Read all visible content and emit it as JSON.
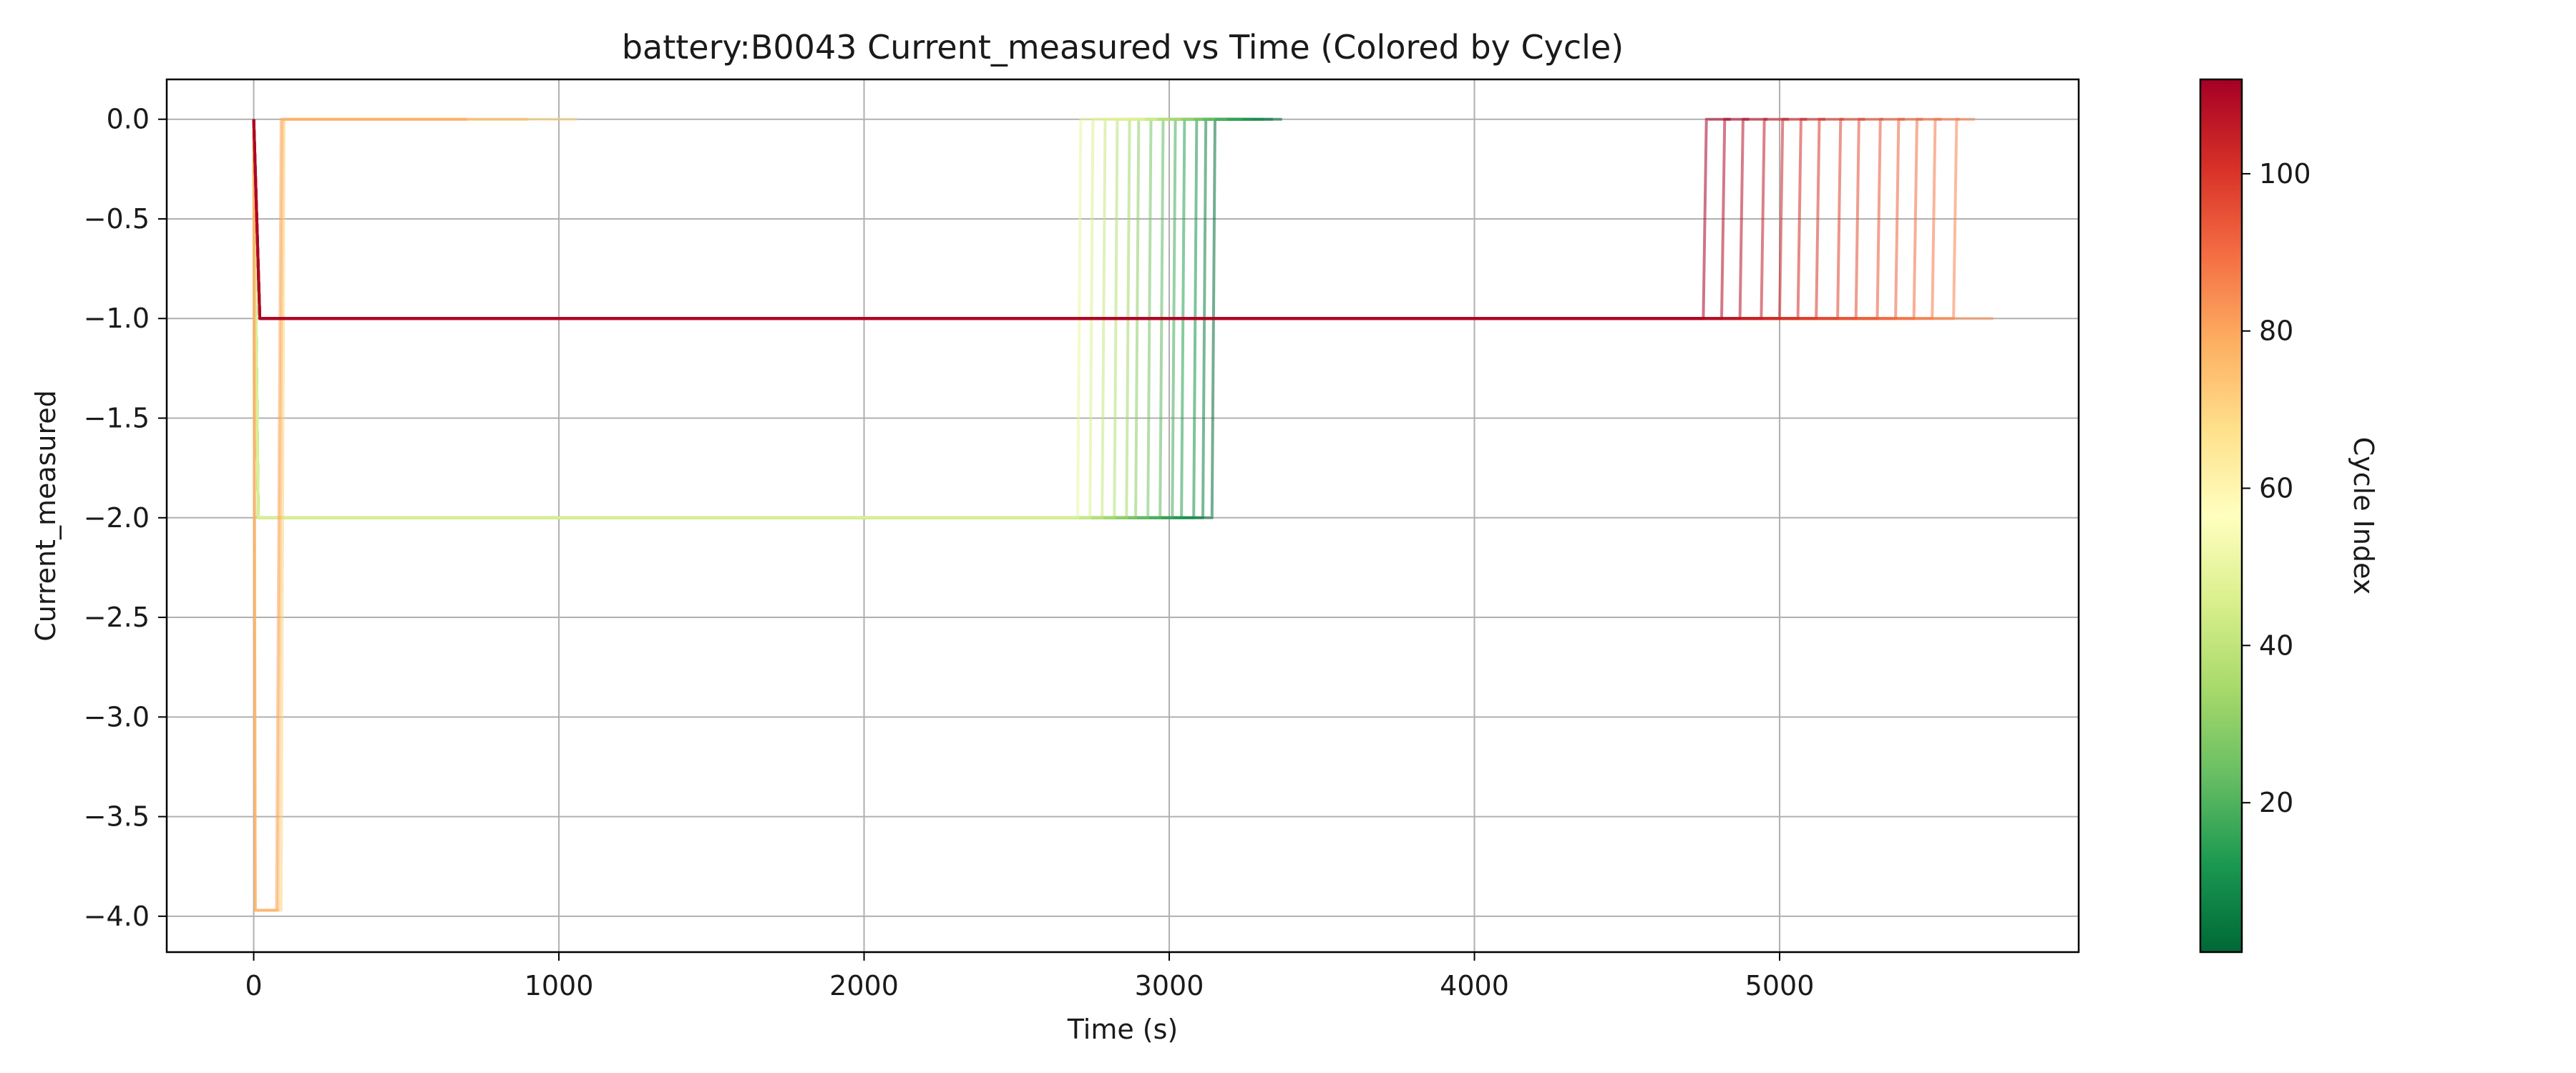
{
  "chart_data": {
    "type": "line",
    "title": "battery:B0043 Current_measured vs Time (Colored by Cycle)",
    "xlabel": "Time (s)",
    "ylabel": "Current_measured",
    "xlim": [
      -285,
      5980
    ],
    "ylim": [
      -4.18,
      0.2
    ],
    "xticks": [
      0,
      1000,
      2000,
      3000,
      4000,
      5000
    ],
    "yticks": [
      0.0,
      -0.5,
      -1.0,
      -1.5,
      -2.0,
      -2.5,
      -3.0,
      -3.5,
      -4.0
    ],
    "grid": true,
    "colorbar": {
      "label": "Cycle Index",
      "colormap": "RdYlGn_r",
      "range": [
        1,
        112
      ],
      "ticks": [
        20,
        40,
        60,
        80,
        100
      ]
    },
    "series": [
      {
        "cycle": 2,
        "points": [
          [
            0,
            0
          ],
          [
            15,
            -2
          ],
          [
            3140,
            -2
          ],
          [
            3150,
            0
          ],
          [
            3370,
            0
          ]
        ]
      },
      {
        "cycle": 6,
        "points": [
          [
            0,
            0
          ],
          [
            15,
            -2
          ],
          [
            3110,
            -2
          ],
          [
            3120,
            0
          ],
          [
            3340,
            0
          ]
        ]
      },
      {
        "cycle": 10,
        "points": [
          [
            0,
            0
          ],
          [
            15,
            -2
          ],
          [
            3080,
            -2
          ],
          [
            3090,
            0
          ],
          [
            3310,
            0
          ]
        ]
      },
      {
        "cycle": 14,
        "points": [
          [
            0,
            0
          ],
          [
            15,
            -2
          ],
          [
            3040,
            -2
          ],
          [
            3050,
            0
          ],
          [
            3270,
            0
          ]
        ]
      },
      {
        "cycle": 18,
        "points": [
          [
            0,
            0
          ],
          [
            15,
            -2
          ],
          [
            3010,
            -2
          ],
          [
            3020,
            0
          ],
          [
            3240,
            0
          ]
        ]
      },
      {
        "cycle": 22,
        "points": [
          [
            0,
            0
          ],
          [
            15,
            -2
          ],
          [
            2970,
            -2
          ],
          [
            2980,
            0
          ],
          [
            3190,
            0
          ]
        ]
      },
      {
        "cycle": 26,
        "points": [
          [
            0,
            0
          ],
          [
            15,
            -2
          ],
          [
            2930,
            -2
          ],
          [
            2940,
            0
          ],
          [
            3150,
            0
          ]
        ]
      },
      {
        "cycle": 30,
        "points": [
          [
            0,
            0
          ],
          [
            15,
            -2
          ],
          [
            2890,
            -2
          ],
          [
            2900,
            0
          ],
          [
            3110,
            0
          ]
        ]
      },
      {
        "cycle": 34,
        "points": [
          [
            0,
            0
          ],
          [
            15,
            -2
          ],
          [
            2860,
            -2
          ],
          [
            2870,
            0
          ],
          [
            3080,
            0
          ]
        ]
      },
      {
        "cycle": 38,
        "points": [
          [
            0,
            0
          ],
          [
            15,
            -2
          ],
          [
            2820,
            -2
          ],
          [
            2830,
            0
          ],
          [
            3040,
            0
          ]
        ]
      },
      {
        "cycle": 42,
        "points": [
          [
            0,
            0
          ],
          [
            15,
            -2
          ],
          [
            2780,
            -2
          ],
          [
            2790,
            0
          ],
          [
            3000,
            0
          ]
        ]
      },
      {
        "cycle": 46,
        "points": [
          [
            0,
            0
          ],
          [
            15,
            -2
          ],
          [
            2740,
            -2
          ],
          [
            2750,
            0
          ],
          [
            2960,
            0
          ]
        ]
      },
      {
        "cycle": 50,
        "points": [
          [
            0,
            0
          ],
          [
            15,
            -2
          ],
          [
            2700,
            -2
          ],
          [
            2710,
            0
          ],
          [
            2920,
            0
          ]
        ]
      },
      {
        "cycle": 70,
        "points": [
          [
            0,
            0
          ],
          [
            5,
            -3.97
          ],
          [
            90,
            -3.97
          ],
          [
            100,
            0
          ],
          [
            1060,
            0
          ]
        ]
      },
      {
        "cycle": 76,
        "points": [
          [
            0,
            0
          ],
          [
            5,
            -3.97
          ],
          [
            80,
            -3.97
          ],
          [
            95,
            0
          ],
          [
            900,
            0
          ]
        ]
      },
      {
        "cycle": 80,
        "points": [
          [
            0,
            0
          ],
          [
            5,
            -3.97
          ],
          [
            75,
            -3.97
          ],
          [
            90,
            0
          ],
          [
            700,
            0
          ]
        ]
      },
      {
        "cycle": 84,
        "points": [
          [
            0,
            0
          ],
          [
            20,
            -1
          ],
          [
            5700,
            -1
          ]
        ]
      },
      {
        "cycle": 86,
        "points": [
          [
            0,
            0
          ],
          [
            20,
            -1
          ],
          [
            5570,
            -1
          ],
          [
            5580,
            0
          ],
          [
            5640,
            0
          ]
        ]
      },
      {
        "cycle": 88,
        "points": [
          [
            0,
            0
          ],
          [
            20,
            -1
          ],
          [
            5500,
            -1
          ],
          [
            5510,
            0
          ],
          [
            5590,
            0
          ]
        ]
      },
      {
        "cycle": 90,
        "points": [
          [
            0,
            0
          ],
          [
            20,
            -1
          ],
          [
            5440,
            -1
          ],
          [
            5450,
            0
          ],
          [
            5530,
            0
          ]
        ]
      },
      {
        "cycle": 92,
        "points": [
          [
            0,
            0
          ],
          [
            20,
            -1
          ],
          [
            5380,
            -1
          ],
          [
            5390,
            0
          ],
          [
            5470,
            0
          ]
        ]
      },
      {
        "cycle": 94,
        "points": [
          [
            0,
            0
          ],
          [
            20,
            -1
          ],
          [
            5320,
            -1
          ],
          [
            5330,
            0
          ],
          [
            5410,
            0
          ]
        ]
      },
      {
        "cycle": 96,
        "points": [
          [
            0,
            0
          ],
          [
            20,
            -1
          ],
          [
            5250,
            -1
          ],
          [
            5260,
            0
          ],
          [
            5340,
            0
          ]
        ]
      },
      {
        "cycle": 98,
        "points": [
          [
            0,
            0
          ],
          [
            20,
            -1
          ],
          [
            5190,
            -1
          ],
          [
            5200,
            0
          ],
          [
            5280,
            0
          ]
        ]
      },
      {
        "cycle": 100,
        "points": [
          [
            0,
            0
          ],
          [
            20,
            -1
          ],
          [
            5120,
            -1
          ],
          [
            5130,
            0
          ],
          [
            5210,
            0
          ]
        ]
      },
      {
        "cycle": 102,
        "points": [
          [
            0,
            0
          ],
          [
            20,
            -1
          ],
          [
            5060,
            -1
          ],
          [
            5070,
            0
          ],
          [
            5150,
            0
          ]
        ]
      },
      {
        "cycle": 104,
        "points": [
          [
            0,
            0
          ],
          [
            20,
            -1
          ],
          [
            5000,
            -1
          ],
          [
            5010,
            0
          ],
          [
            5090,
            0
          ]
        ]
      },
      {
        "cycle": 106,
        "points": [
          [
            0,
            0
          ],
          [
            20,
            -1
          ],
          [
            4940,
            -1
          ],
          [
            4950,
            0
          ],
          [
            5030,
            0
          ]
        ]
      },
      {
        "cycle": 108,
        "points": [
          [
            0,
            0
          ],
          [
            20,
            -1
          ],
          [
            4870,
            -1
          ],
          [
            4880,
            0
          ],
          [
            4960,
            0
          ]
        ]
      },
      {
        "cycle": 110,
        "points": [
          [
            0,
            0
          ],
          [
            20,
            -1
          ],
          [
            4810,
            -1
          ],
          [
            4820,
            0
          ],
          [
            4900,
            0
          ]
        ]
      },
      {
        "cycle": 112,
        "points": [
          [
            0,
            0
          ],
          [
            20,
            -1
          ],
          [
            4750,
            -1
          ],
          [
            4760,
            0
          ],
          [
            4840,
            0
          ]
        ]
      }
    ]
  }
}
